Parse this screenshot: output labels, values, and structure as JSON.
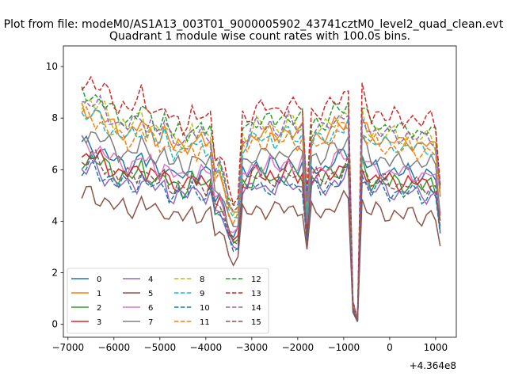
{
  "figure": {
    "suptitle": "Plot from file: modeM0/AS1A13_003T01_9000005902_43741cztM0_level2_quad_clean.evt",
    "title": "Quadrant 1 module wise count rates with 100.0s bins.",
    "offset_label": "+4.364e8"
  },
  "chart_data": {
    "type": "line",
    "title": "Quadrant 1 module wise count rates with 100.0s bins.",
    "xlabel": "",
    "ylabel": "",
    "x_offset": 436400000,
    "xlim": [
      -7100,
      1450
    ],
    "ylim": [
      -0.5,
      10.8
    ],
    "xticks": [
      -7000,
      -6000,
      -5000,
      -4000,
      -3000,
      -2000,
      -1000,
      0,
      1000
    ],
    "xtick_labels": [
      "−7000",
      "−6000",
      "−5000",
      "−4000",
      "−3000",
      "−2000",
      "−1000",
      "0",
      "1000"
    ],
    "yticks": [
      0,
      2,
      4,
      6,
      8,
      10
    ],
    "ytick_labels": [
      "0",
      "2",
      "4",
      "6",
      "8",
      "10"
    ],
    "grid": false,
    "legend": {
      "placement": "lower-left",
      "columns": 4
    },
    "x": [
      -6700,
      -6600,
      -6500,
      -6400,
      -6300,
      -6200,
      -6100,
      -6000,
      -5900,
      -5800,
      -5700,
      -5600,
      -5500,
      -5400,
      -5300,
      -5200,
      -5100,
      -5000,
      -4900,
      -4800,
      -4700,
      -4600,
      -4500,
      -4400,
      -4300,
      -4200,
      -4100,
      -4000,
      -3900,
      -3800,
      -3700,
      -3600,
      -3500,
      -3400,
      -3300,
      -3200,
      -3100,
      -3000,
      -2900,
      -2800,
      -2700,
      -2600,
      -2500,
      -2400,
      -2300,
      -2200,
      -2100,
      -2000,
      -1900,
      -1800,
      -1700,
      -1600,
      -1500,
      -1400,
      -1300,
      -1200,
      -1100,
      -1000,
      -900,
      -800,
      -700,
      -600,
      -500,
      -400,
      -300,
      -200,
      -100,
      0,
      100,
      200,
      300,
      400,
      500,
      600,
      700,
      800,
      900,
      1000,
      1100
    ],
    "base": [
      1,
      1,
      1.01,
      0.99,
      0.98,
      0.96,
      0.94,
      0.92,
      0.9,
      0.91,
      0.89,
      0.9,
      0.91,
      0.95,
      0.9,
      0.91,
      0.88,
      0.87,
      0.9,
      0.85,
      0.83,
      0.85,
      0.82,
      0.83,
      0.88,
      0.84,
      0.86,
      0.84,
      0.86,
      0.7,
      0.72,
      0.66,
      0.55,
      0.5,
      0.52,
      0.86,
      0.85,
      0.88,
      0.9,
      0.89,
      0.88,
      0.9,
      0.88,
      0.89,
      0.9,
      0.92,
      0.9,
      0.88,
      0.9,
      0.55,
      0.88,
      0.89,
      0.87,
      0.88,
      0.9,
      0.92,
      0.93,
      0.95,
      0.97,
      0.1,
      0.02,
      0.95,
      0.9,
      0.86,
      0.88,
      0.87,
      0.86,
      0.85,
      0.86,
      0.85,
      0.84,
      0.86,
      0.85,
      0.84,
      0.83,
      0.84,
      0.85,
      0.82,
      0.6
    ],
    "series": [
      {
        "name": "0",
        "color": "#1f77b4",
        "dash": "solid",
        "scale": 6.9
      },
      {
        "name": "1",
        "color": "#ff7f0e",
        "dash": "solid",
        "scale": 8.3
      },
      {
        "name": "2",
        "color": "#2ca02c",
        "dash": "solid",
        "scale": 6.4
      },
      {
        "name": "3",
        "color": "#d62728",
        "dash": "solid",
        "scale": 6.5
      },
      {
        "name": "4",
        "color": "#9467bd",
        "dash": "solid",
        "scale": 6.0
      },
      {
        "name": "5",
        "color": "#8c564b",
        "dash": "solid",
        "scale": 5.0
      },
      {
        "name": "6",
        "color": "#e377c2",
        "dash": "solid",
        "scale": 6.9
      },
      {
        "name": "7",
        "color": "#7f7f7f",
        "dash": "solid",
        "scale": 7.4
      },
      {
        "name": "8",
        "color": "#bcbd22",
        "dash": "dash",
        "scale": 8.6
      },
      {
        "name": "9",
        "color": "#17becf",
        "dash": "dash",
        "scale": 8.1
      },
      {
        "name": "10",
        "color": "#1f77b4",
        "dash": "dash",
        "scale": 6.0
      },
      {
        "name": "11",
        "color": "#ff7f0e",
        "dash": "dash",
        "scale": 8.0
      },
      {
        "name": "12",
        "color": "#2ca02c",
        "dash": "dash",
        "scale": 8.9
      },
      {
        "name": "13",
        "color": "#d62728",
        "dash": "dash",
        "scale": 9.4
      },
      {
        "name": "14",
        "color": "#9467bd",
        "dash": "dash",
        "scale": 8.6
      },
      {
        "name": "15",
        "color": "#8c564b",
        "dash": "dash",
        "scale": 6.4
      }
    ]
  }
}
